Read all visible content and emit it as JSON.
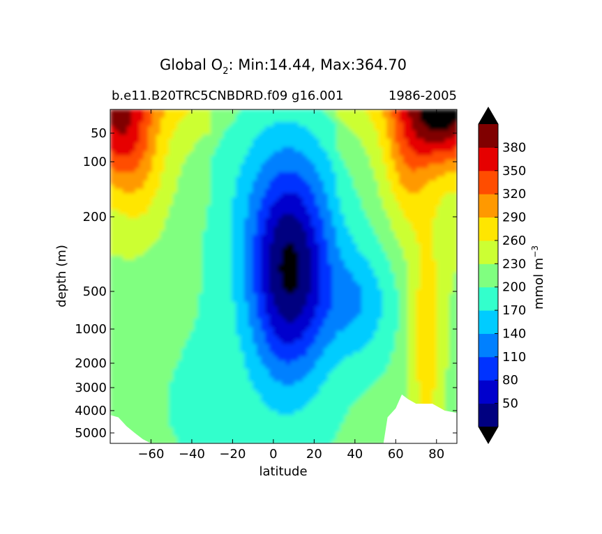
{
  "chart_data": {
    "type": "heatmap",
    "title_prefix": "Global O",
    "title_sub": "2",
    "title_suffix": ": Min:14.44, Max:364.70",
    "subtitle_left": "b.e11.B20TRC5CNBDRD.f09 g16.001",
    "subtitle_right": "1986-2005",
    "xlabel": "latitude",
    "ylabel": "depth (m)",
    "xlim": [
      -80,
      90
    ],
    "ylim": [
      20,
      5500
    ],
    "yscale": "depth-stretched",
    "xticks": [
      -60,
      -40,
      -20,
      0,
      20,
      40,
      60,
      80
    ],
    "xtick_labels": [
      "−60",
      "−40",
      "−20",
      "0",
      "20",
      "40",
      "60",
      "80"
    ],
    "yticks": [
      50,
      100,
      200,
      500,
      1000,
      2000,
      3000,
      4000,
      5000
    ],
    "ytick_labels": [
      "50",
      "100",
      "200",
      "500",
      "1000",
      "2000",
      "3000",
      "4000",
      "5000"
    ],
    "grid": false,
    "colorbar": {
      "label_base": "mmol m",
      "label_exp": "−3",
      "levels": [
        20,
        50,
        80,
        110,
        140,
        170,
        200,
        230,
        260,
        290,
        320,
        350,
        380,
        410
      ],
      "tick_labels": [
        "50",
        "80",
        "110",
        "140",
        "170",
        "200",
        "230",
        "260",
        "290",
        "320",
        "350",
        "380"
      ],
      "colors": [
        "#000080",
        "#0000cd",
        "#0033ff",
        "#0080ff",
        "#00ccff",
        "#33ffcc",
        "#80ff80",
        "#ccff33",
        "#ffe600",
        "#ff9900",
        "#ff4d00",
        "#e60000",
        "#800000"
      ],
      "under_color": "#000000",
      "over_color": "#000000",
      "extend": "both"
    },
    "field_description": "Zonal-mean dissolved oxygen concentration (mmol m-3) versus latitude and depth",
    "min": 14.44,
    "max": 364.7
  }
}
